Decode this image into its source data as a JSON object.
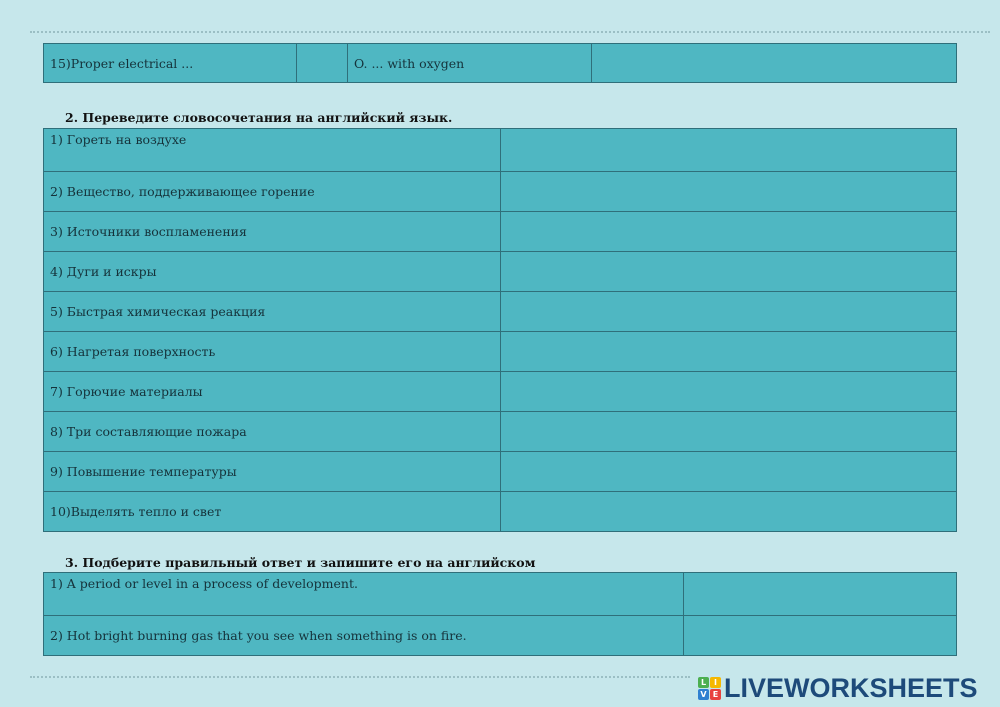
{
  "table1": {
    "left": "15)Proper electrical ...",
    "right": "O.   ... with oxygen"
  },
  "section2": {
    "heading": "2.   Переведите словосочетания на английский язык.",
    "rows": [
      "1)  Гореть на воздухе",
      "2)  Вещество, поддерживающее горение",
      "3)  Источники воспламенения",
      "4)  Дуги и искры",
      "5)  Быстрая химическая реакция",
      "6)  Нагретая поверхность",
      "7)  Горючие материалы",
      "8)  Три составляющие пожара",
      "9)  Повышение температуры",
      "10)Выделять тепло и свет"
    ]
  },
  "section3": {
    "heading": "3.   Подберите правильный ответ и запишите его на английском",
    "rows": [
      "1)  A period or level in a process of development.",
      "2)  Hot bright burning gas that you see when something is on fire."
    ]
  },
  "logo": {
    "text": "LIVEWORKSHEETS",
    "badge": [
      "L",
      "I",
      "V",
      "E"
    ]
  },
  "colors": {
    "background": "#c6e7eb",
    "cell": "#4fb7c2",
    "logo": "#1d4a7a"
  }
}
